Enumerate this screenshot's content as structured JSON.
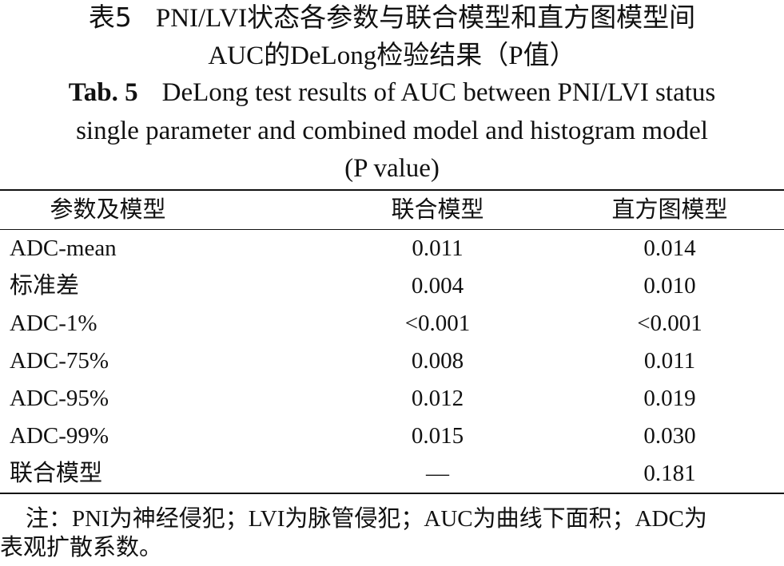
{
  "caption": {
    "cn_label": "表5",
    "cn_title_line1": "PNI/LVI状态各参数与联合模型和直方图模型间",
    "cn_title_line2": "AUC的DeLong检验结果（P值）",
    "en_label": "Tab. 5",
    "en_title_line1": "DeLong test results of AUC between PNI/LVI status",
    "en_title_line2": "single parameter and combined model and histogram model",
    "en_title_line3": "(P value)"
  },
  "table": {
    "headers": [
      "参数及模型",
      "联合模型",
      "直方图模型"
    ],
    "rows": [
      {
        "name": "ADC-mean",
        "combined": "0.011",
        "histogram": "0.014"
      },
      {
        "name": "标准差",
        "combined": "0.004",
        "histogram": "0.010"
      },
      {
        "name": "ADC-1%",
        "combined": "<0.001",
        "histogram": "<0.001"
      },
      {
        "name": "ADC-75%",
        "combined": "0.008",
        "histogram": "0.011"
      },
      {
        "name": "ADC-95%",
        "combined": "0.012",
        "histogram": "0.019"
      },
      {
        "name": "ADC-99%",
        "combined": "0.015",
        "histogram": "0.030"
      },
      {
        "name": "联合模型",
        "combined": "—",
        "histogram": "0.181"
      }
    ]
  },
  "note": {
    "line1": "注：PNI为神经侵犯；LVI为脉管侵犯；AUC为曲线下面积；ADC为",
    "line2": "表观扩散系数。"
  }
}
